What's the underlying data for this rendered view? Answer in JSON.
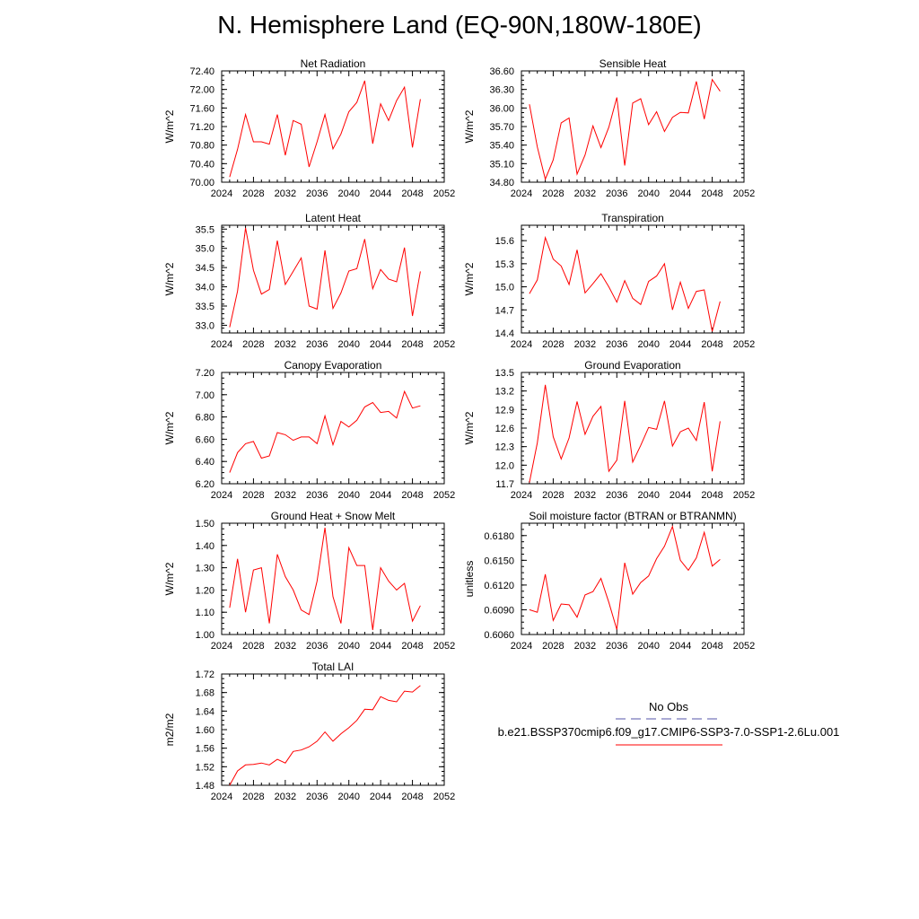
{
  "page_title": "N. Hemisphere Land (EQ-90N,180W-180E)",
  "legend": {
    "obs_label": "No Obs",
    "obs_color": "#5555aa",
    "case_label": "b.e21.BSSP370cmip6.f09_g17.CMIP6-SSP3-7.0-SSP1-2.6Lu.001",
    "case_color": "#ff0000"
  },
  "chart_data": [
    {
      "type": "line",
      "title": "Net Radiation",
      "xlabel": "",
      "ylabel": "W/m^2",
      "xlim": [
        2024,
        2052
      ],
      "ylim": [
        70.0,
        72.4
      ],
      "xticks": [
        "2024",
        "2028",
        "2032",
        "2036",
        "2040",
        "2044",
        "2048",
        "2052"
      ],
      "yticks": [
        "70.00",
        "70.40",
        "70.80",
        "71.20",
        "71.60",
        "72.00",
        "72.40"
      ],
      "x": [
        2025,
        2026,
        2027,
        2028,
        2029,
        2030,
        2031,
        2032,
        2033,
        2034,
        2035,
        2036,
        2037,
        2038,
        2039,
        2040,
        2041,
        2042,
        2043,
        2044,
        2045,
        2046,
        2047,
        2048,
        2049
      ],
      "series": [
        {
          "values": [
            70.11,
            70.71,
            71.46,
            70.87,
            70.87,
            70.82,
            71.46,
            70.58,
            71.33,
            71.25,
            70.33,
            70.87,
            71.46,
            70.72,
            71.04,
            71.52,
            71.72,
            72.19,
            70.83,
            71.69,
            71.33,
            71.76,
            72.05,
            70.75,
            71.79
          ],
          "color": "#ff0000"
        }
      ]
    },
    {
      "type": "line",
      "title": "Sensible Heat",
      "xlabel": "",
      "ylabel": "W/m^2",
      "xlim": [
        2024,
        2052
      ],
      "ylim": [
        34.8,
        36.6
      ],
      "xticks": [
        "2024",
        "2028",
        "2032",
        "2036",
        "2040",
        "2044",
        "2048",
        "2052"
      ],
      "yticks": [
        "34.80",
        "35.10",
        "35.40",
        "35.70",
        "36.00",
        "36.30",
        "36.60"
      ],
      "x": [
        2025,
        2026,
        2027,
        2028,
        2029,
        2030,
        2031,
        2032,
        2033,
        2034,
        2035,
        2036,
        2037,
        2038,
        2039,
        2040,
        2041,
        2042,
        2043,
        2044,
        2045,
        2046,
        2047,
        2048,
        2049
      ],
      "series": [
        {
          "values": [
            36.06,
            35.37,
            34.85,
            35.16,
            35.76,
            35.84,
            34.93,
            35.24,
            35.71,
            35.36,
            35.69,
            36.17,
            35.07,
            36.08,
            36.15,
            35.73,
            35.94,
            35.62,
            35.85,
            35.93,
            35.92,
            36.43,
            35.82,
            36.46,
            36.27
          ],
          "color": "#ff0000"
        }
      ]
    },
    {
      "type": "line",
      "title": "Latent Heat",
      "xlabel": "",
      "ylabel": "W/m^2",
      "xlim": [
        2024,
        2052
      ],
      "ylim": [
        32.8,
        35.6
      ],
      "xticks": [
        "2024",
        "2028",
        "2032",
        "2036",
        "2040",
        "2044",
        "2048",
        "2052"
      ],
      "yticks": [
        "33.0",
        "33.5",
        "34.0",
        "34.5",
        "35.0",
        "35.5"
      ],
      "x": [
        2025,
        2026,
        2027,
        2028,
        2029,
        2030,
        2031,
        2032,
        2033,
        2034,
        2035,
        2036,
        2037,
        2038,
        2039,
        2040,
        2041,
        2042,
        2043,
        2044,
        2045,
        2046,
        2047,
        2048,
        2049
      ],
      "series": [
        {
          "values": [
            32.95,
            33.89,
            35.53,
            34.43,
            33.81,
            33.93,
            35.2,
            34.06,
            34.4,
            34.75,
            33.5,
            33.42,
            34.95,
            33.44,
            33.84,
            34.41,
            34.47,
            35.24,
            33.95,
            34.45,
            34.2,
            34.13,
            35.02,
            33.24,
            34.4
          ],
          "color": "#ff0000"
        }
      ]
    },
    {
      "type": "line",
      "title": "Transpiration",
      "xlabel": "",
      "ylabel": "W/m^2",
      "xlim": [
        2024,
        2052
      ],
      "ylim": [
        14.4,
        15.8
      ],
      "xticks": [
        "2024",
        "2028",
        "2032",
        "2036",
        "2040",
        "2044",
        "2048",
        "2052"
      ],
      "yticks": [
        "14.4",
        "14.7",
        "15.0",
        "15.3",
        "15.6"
      ],
      "x": [
        2025,
        2026,
        2027,
        2028,
        2029,
        2030,
        2031,
        2032,
        2033,
        2034,
        2035,
        2036,
        2037,
        2038,
        2039,
        2040,
        2041,
        2042,
        2043,
        2044,
        2045,
        2046,
        2047,
        2048,
        2049
      ],
      "series": [
        {
          "values": [
            14.91,
            15.09,
            15.64,
            15.36,
            15.27,
            15.03,
            15.48,
            14.92,
            15.04,
            15.17,
            15.0,
            14.8,
            15.08,
            14.85,
            14.77,
            15.07,
            15.14,
            15.3,
            14.7,
            15.06,
            14.72,
            14.94,
            14.96,
            14.42,
            14.81
          ],
          "color": "#ff0000"
        }
      ]
    },
    {
      "type": "line",
      "title": "Canopy Evaporation",
      "xlabel": "",
      "ylabel": "W/m^2",
      "xlim": [
        2024,
        2052
      ],
      "ylim": [
        6.2,
        7.2
      ],
      "xticks": [
        "2024",
        "2028",
        "2032",
        "2036",
        "2040",
        "2044",
        "2048",
        "2052"
      ],
      "yticks": [
        "6.20",
        "6.40",
        "6.60",
        "6.80",
        "7.00",
        "7.20"
      ],
      "x": [
        2025,
        2026,
        2027,
        2028,
        2029,
        2030,
        2031,
        2032,
        2033,
        2034,
        2035,
        2036,
        2037,
        2038,
        2039,
        2040,
        2041,
        2042,
        2043,
        2044,
        2045,
        2046,
        2047,
        2048,
        2049
      ],
      "series": [
        {
          "values": [
            6.3,
            6.48,
            6.56,
            6.58,
            6.43,
            6.45,
            6.66,
            6.64,
            6.59,
            6.62,
            6.62,
            6.56,
            6.81,
            6.55,
            6.76,
            6.71,
            6.77,
            6.89,
            6.93,
            6.84,
            6.85,
            6.79,
            7.03,
            6.88,
            6.9
          ],
          "color": "#ff0000"
        }
      ]
    },
    {
      "type": "line",
      "title": "Ground Evaporation",
      "xlabel": "",
      "ylabel": "W/m^2",
      "xlim": [
        2024,
        2052
      ],
      "ylim": [
        11.7,
        13.5
      ],
      "xticks": [
        "2024",
        "2028",
        "2032",
        "2036",
        "2040",
        "2044",
        "2048",
        "2052"
      ],
      "yticks": [
        "11.7",
        "12.0",
        "12.3",
        "12.6",
        "12.9",
        "13.2",
        "13.5"
      ],
      "x": [
        2025,
        2026,
        2027,
        2028,
        2029,
        2030,
        2031,
        2032,
        2033,
        2034,
        2035,
        2036,
        2037,
        2038,
        2039,
        2040,
        2041,
        2042,
        2043,
        2044,
        2045,
        2046,
        2047,
        2048,
        2049
      ],
      "series": [
        {
          "values": [
            11.72,
            12.36,
            13.3,
            12.46,
            12.1,
            12.44,
            13.03,
            12.5,
            12.79,
            12.95,
            11.9,
            12.08,
            13.04,
            12.05,
            12.32,
            12.61,
            12.58,
            13.04,
            12.31,
            12.54,
            12.6,
            12.4,
            13.02,
            11.9,
            12.71
          ],
          "color": "#ff0000"
        }
      ]
    },
    {
      "type": "line",
      "title": "Ground Heat + Snow Melt",
      "xlabel": "",
      "ylabel": "W/m^2",
      "xlim": [
        2024,
        2052
      ],
      "ylim": [
        1.0,
        1.5
      ],
      "xticks": [
        "2024",
        "2028",
        "2032",
        "2036",
        "2040",
        "2044",
        "2048",
        "2052"
      ],
      "yticks": [
        "1.00",
        "1.10",
        "1.20",
        "1.30",
        "1.40",
        "1.50"
      ],
      "x": [
        2025,
        2026,
        2027,
        2028,
        2029,
        2030,
        2031,
        2032,
        2033,
        2034,
        2035,
        2036,
        2037,
        2038,
        2039,
        2040,
        2041,
        2042,
        2043,
        2044,
        2045,
        2046,
        2047,
        2048,
        2049
      ],
      "series": [
        {
          "values": [
            1.12,
            1.34,
            1.1,
            1.29,
            1.3,
            1.05,
            1.36,
            1.26,
            1.2,
            1.11,
            1.09,
            1.24,
            1.48,
            1.17,
            1.05,
            1.39,
            1.31,
            1.31,
            1.02,
            1.3,
            1.24,
            1.2,
            1.23,
            1.06,
            1.13
          ],
          "color": "#ff0000"
        }
      ]
    },
    {
      "type": "line",
      "title": "Soil moisture factor (BTRAN or BTRANMN)",
      "xlabel": "",
      "ylabel": "unitless",
      "xlim": [
        2024,
        2052
      ],
      "ylim": [
        0.606,
        0.6195
      ],
      "xticks": [
        "2024",
        "2028",
        "2032",
        "2036",
        "2040",
        "2044",
        "2048",
        "2052"
      ],
      "yticks": [
        "0.6060",
        "0.6090",
        "0.6120",
        "0.6150",
        "0.6180"
      ],
      "x": [
        2025,
        2026,
        2027,
        2028,
        2029,
        2030,
        2031,
        2032,
        2033,
        2034,
        2035,
        2036,
        2037,
        2038,
        2039,
        2040,
        2041,
        2042,
        2043,
        2044,
        2045,
        2046,
        2047,
        2048,
        2049
      ],
      "series": [
        {
          "values": [
            0.609,
            0.6087,
            0.6133,
            0.6077,
            0.6097,
            0.6096,
            0.6081,
            0.6108,
            0.6112,
            0.6128,
            0.6099,
            0.6066,
            0.6147,
            0.6109,
            0.6123,
            0.6131,
            0.6152,
            0.6167,
            0.6191,
            0.615,
            0.6138,
            0.6153,
            0.6184,
            0.6143,
            0.6151
          ],
          "color": "#ff0000"
        }
      ]
    },
    {
      "type": "line",
      "title": "Total LAI",
      "xlabel": "",
      "ylabel": "m2/m2",
      "xlim": [
        2024,
        2052
      ],
      "ylim": [
        1.48,
        1.72
      ],
      "xticks": [
        "2024",
        "2028",
        "2032",
        "2036",
        "2040",
        "2044",
        "2048",
        "2052"
      ],
      "yticks": [
        "1.48",
        "1.52",
        "1.56",
        "1.60",
        "1.64",
        "1.68",
        "1.72"
      ],
      "x": [
        2025,
        2026,
        2027,
        2028,
        2029,
        2030,
        2031,
        2032,
        2033,
        2034,
        2035,
        2036,
        2037,
        2038,
        2039,
        2040,
        2041,
        2042,
        2043,
        2044,
        2045,
        2046,
        2047,
        2048,
        2049
      ],
      "series": [
        {
          "values": [
            1.48,
            1.511,
            1.524,
            1.525,
            1.528,
            1.524,
            1.536,
            1.528,
            1.553,
            1.556,
            1.563,
            1.575,
            1.595,
            1.575,
            1.591,
            1.604,
            1.62,
            1.644,
            1.643,
            1.671,
            1.663,
            1.66,
            1.683,
            1.681,
            1.695
          ],
          "color": "#ff0000"
        }
      ]
    }
  ]
}
